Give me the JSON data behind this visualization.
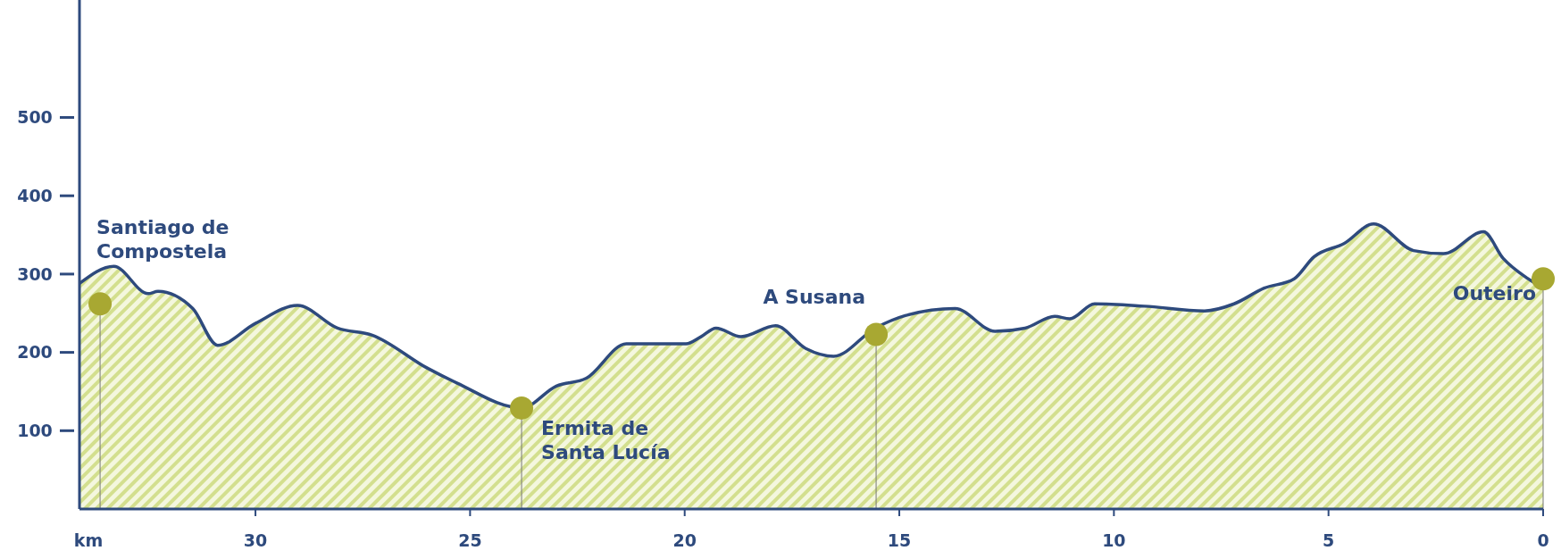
{
  "chart_data": {
    "type": "area",
    "xlabel": "km",
    "xlim": [
      34.1,
      0
    ],
    "xticks": [
      30,
      25,
      20,
      15,
      10,
      5,
      0
    ],
    "ylim": [
      0,
      650
    ],
    "yticks": [
      100,
      200,
      300,
      400,
      500
    ],
    "series": [
      {
        "color": "#2e4a7d",
        "x": [
          34.1,
          33.3,
          32.5,
          32.27,
          31.46,
          30.88,
          30,
          29.02,
          28.09,
          27.28,
          26,
          25.31,
          23.8,
          22.99,
          22.29,
          21.36,
          19.97,
          19.62,
          19.27,
          18.69,
          17.88,
          17.18,
          16.53,
          15.56,
          14.86,
          13.7,
          12.77,
          12.07,
          11.38,
          11.03,
          10.45,
          9.29,
          7.89,
          7.2,
          6.5,
          5.8,
          5.34,
          4.64,
          3.95,
          3.02,
          2.32,
          1.39,
          0.93,
          0.35,
          0
        ],
        "values": [
          288,
          310,
          275,
          278,
          256,
          209,
          237,
          260,
          231,
          222,
          180,
          161,
          129,
          157,
          167,
          211,
          211,
          220,
          231,
          220,
          234,
          205,
          195,
          231,
          247,
          256,
          227,
          231,
          246,
          243,
          262,
          259,
          253,
          262,
          282,
          294,
          322,
          339,
          364,
          330,
          326,
          354,
          320,
          294,
          282
        ]
      },
      {
        "type": "lollipop",
        "color": "#a8a832",
        "x": [
          33.62,
          23.8,
          15.54,
          0
        ],
        "values": [
          262,
          129,
          223,
          294
        ]
      }
    ],
    "annotations": [
      {
        "text": "Santiago de\nCompostela",
        "x": 33.62,
        "y": 262
      },
      {
        "text": "Ermita de\nSanta Lucía",
        "x": 23.8,
        "y": 129
      },
      {
        "text": "A Susana",
        "x": 15.54,
        "y": 223
      },
      {
        "text": "Outeiro",
        "x": 0,
        "y": 294
      }
    ]
  }
}
